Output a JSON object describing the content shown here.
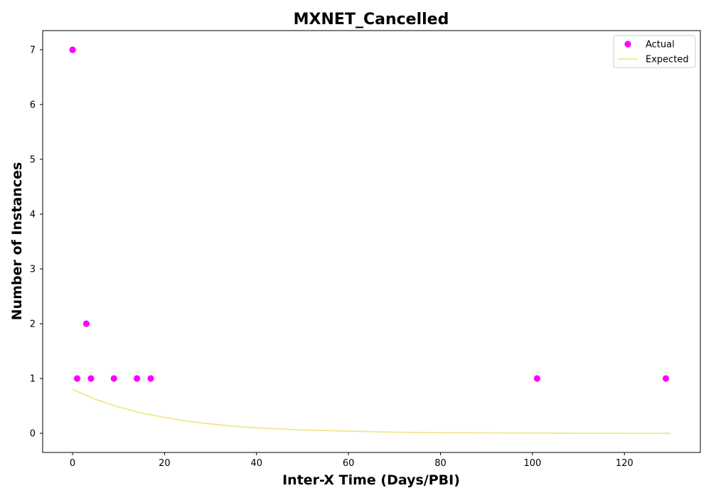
{
  "chart_data": {
    "type": "scatter",
    "title": "MXNET_Cancelled",
    "xlabel": "Inter-X Time (Days/PBI)",
    "ylabel": "Number of Instances",
    "xlim": [
      -6.5,
      136.5
    ],
    "ylim": [
      -0.35,
      7.35
    ],
    "xticks": [
      0,
      20,
      40,
      60,
      80,
      100,
      120
    ],
    "yticks": [
      0,
      1,
      2,
      3,
      4,
      5,
      6,
      7
    ],
    "grid": false,
    "legend_position": "top-right",
    "series": [
      {
        "name": "Actual",
        "kind": "scatter",
        "color": "#ff00ff",
        "x": [
          0,
          1,
          3,
          4,
          9,
          14,
          17,
          101,
          129
        ],
        "y": [
          7,
          1,
          2,
          1,
          1,
          1,
          1,
          1,
          1
        ]
      },
      {
        "name": "Expected",
        "kind": "line",
        "color": "#f0e68c",
        "x": [
          0,
          5,
          10,
          15,
          20,
          25,
          30,
          35,
          40,
          45,
          50,
          55,
          60,
          65,
          70,
          75,
          80,
          85,
          90,
          95,
          100,
          105,
          110,
          115,
          120,
          125,
          130
        ],
        "y": [
          0.8,
          0.62,
          0.48,
          0.37,
          0.29,
          0.22,
          0.17,
          0.13,
          0.1,
          0.08,
          0.06,
          0.05,
          0.04,
          0.03,
          0.02,
          0.015,
          0.012,
          0.009,
          0.007,
          0.005,
          0.004,
          0.003,
          0.002,
          0.002,
          0.001,
          0.001,
          0.001
        ]
      }
    ]
  }
}
